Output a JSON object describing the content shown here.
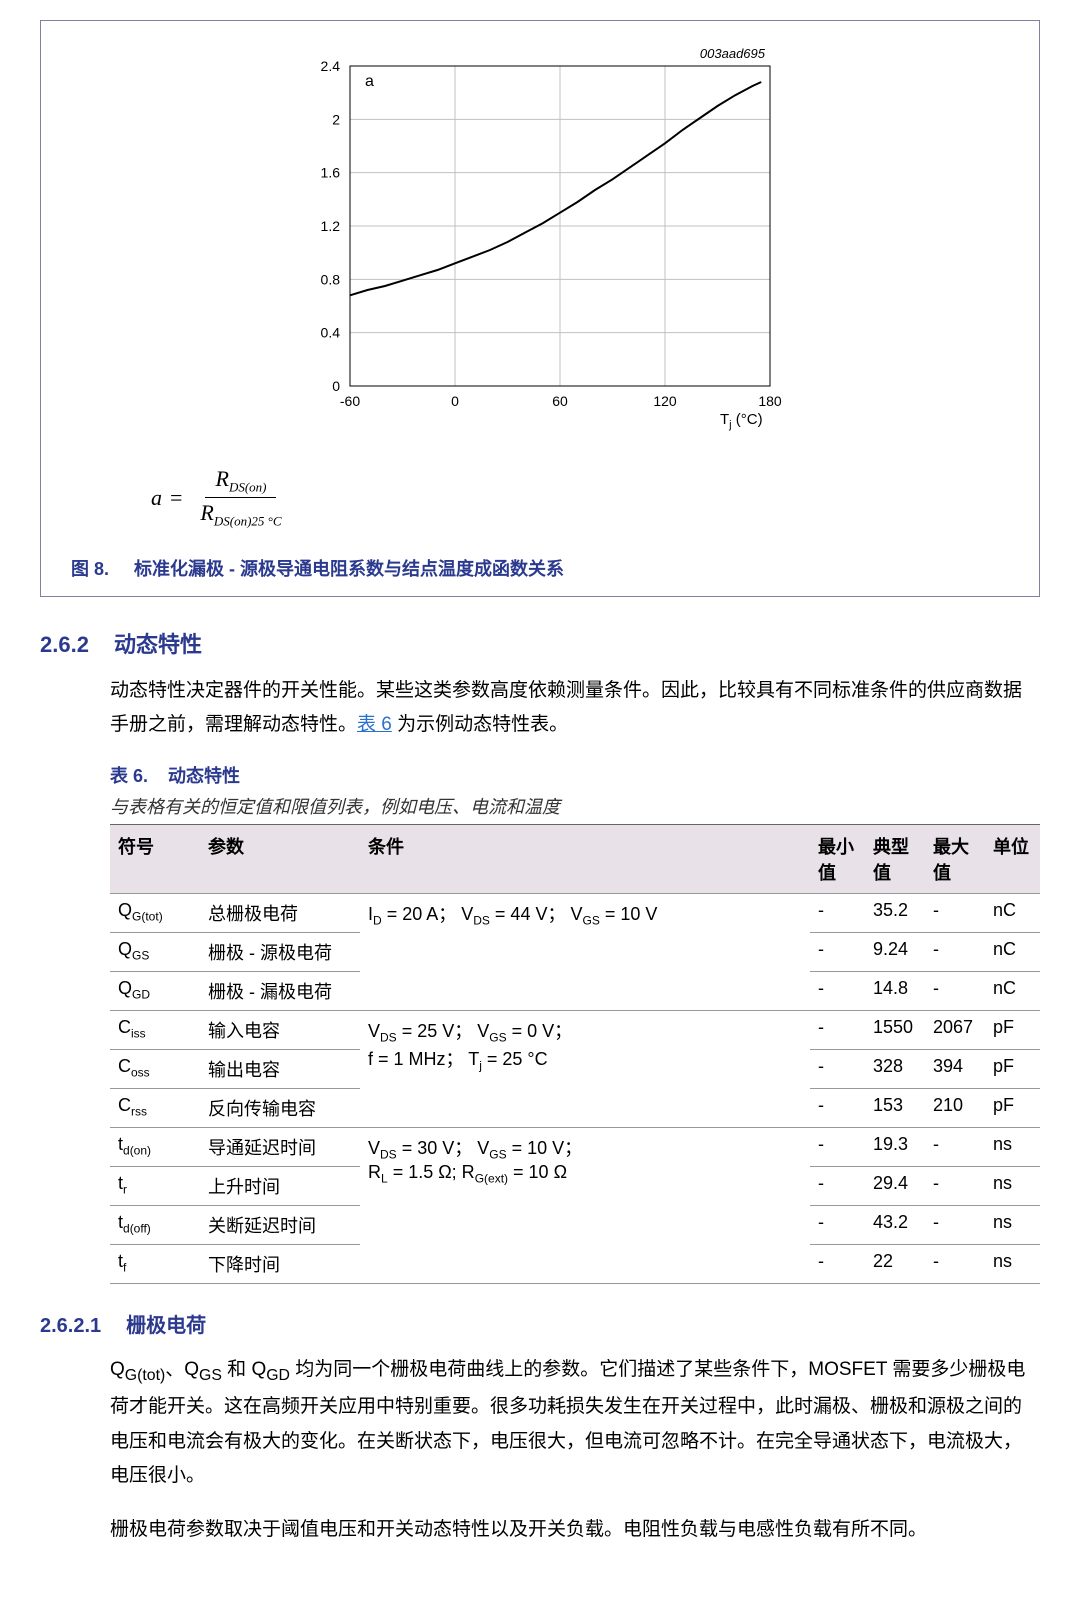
{
  "figure": {
    "label_num": "图 8.",
    "caption": "标准化漏极 - 源极导通电阻系数与结点温度成函数关系",
    "corner_id": "003aad695",
    "formula_lhs": "a",
    "formula_eq": "=",
    "formula_num_sym": "R",
    "formula_num_sub": "DS(on)",
    "formula_den_sym": "R",
    "formula_den_sub": "DS(on)25 °C",
    "chart": {
      "type": "line",
      "y_label": "a",
      "x_label": "T",
      "x_label_sub": "j",
      "x_unit": "(°C)",
      "xlim": [
        -60,
        180
      ],
      "ylim": [
        0,
        2.4
      ],
      "xticks": [
        -60,
        0,
        60,
        120,
        180
      ],
      "yticks": [
        0,
        0.4,
        0.8,
        1.2,
        1.6,
        2,
        2.4
      ],
      "grid_color": "#c0c0c0",
      "line_color": "#000000",
      "line_width": 2,
      "tick_fontsize": 14,
      "data": [
        [
          -60,
          0.68
        ],
        [
          -50,
          0.72
        ],
        [
          -40,
          0.75
        ],
        [
          -30,
          0.79
        ],
        [
          -20,
          0.83
        ],
        [
          -10,
          0.87
        ],
        [
          0,
          0.92
        ],
        [
          10,
          0.97
        ],
        [
          20,
          1.02
        ],
        [
          25,
          1.05
        ],
        [
          30,
          1.08
        ],
        [
          40,
          1.15
        ],
        [
          50,
          1.22
        ],
        [
          60,
          1.3
        ],
        [
          70,
          1.38
        ],
        [
          80,
          1.47
        ],
        [
          90,
          1.55
        ],
        [
          100,
          1.64
        ],
        [
          110,
          1.73
        ],
        [
          120,
          1.82
        ],
        [
          130,
          1.92
        ],
        [
          140,
          2.01
        ],
        [
          150,
          2.1
        ],
        [
          160,
          2.18
        ],
        [
          170,
          2.25
        ],
        [
          175,
          2.28
        ]
      ]
    }
  },
  "section262": {
    "num": "2.6.2",
    "title": "动态特性",
    "para1a": "动态特性决定器件的开关性能。某些这类参数高度依赖测量条件。因此，比较具有不同标准条件的供应商数据手册之前，需理解动态特性。",
    "link": "表 6",
    "para1b": " 为示例动态特性表。"
  },
  "table6": {
    "label_num": "表 6.",
    "title": "动态特性",
    "note": "与表格有关的恒定值和限值列表，例如电压、电流和温度",
    "headers": {
      "symbol": "符号",
      "param": "参数",
      "cond": "条件",
      "min": "最小值",
      "typ": "典型值",
      "max": "最大值",
      "unit": "单位"
    },
    "cond_group1": "I<sub>D</sub> = 20 A； V<sub>DS</sub> = 44 V； V<sub>GS</sub> = 10 V",
    "cond_group2": "V<sub>DS</sub> = 25 V； V<sub>GS</sub> = 0 V；<br>f = 1 MHz； T<sub>j</sub> = 25 °C",
    "cond_group3": "V<sub>DS</sub> = 30 V； V<sub>GS</sub> = 10 V；<br>R<sub>L</sub> = 1.5 Ω; R<sub>G(ext)</sub> = 10 Ω",
    "rows": [
      {
        "sym": "Q<sub>G(tot)</sub>",
        "param": "总栅极电荷",
        "min": "-",
        "typ": "35.2",
        "max": "-",
        "unit": "nC"
      },
      {
        "sym": "Q<sub>GS</sub>",
        "param": "栅极 - 源极电荷",
        "min": "-",
        "typ": "9.24",
        "max": "-",
        "unit": "nC"
      },
      {
        "sym": "Q<sub>GD</sub>",
        "param": "栅极 - 漏极电荷",
        "min": "-",
        "typ": "14.8",
        "max": "-",
        "unit": "nC"
      },
      {
        "sym": "C<sub>iss</sub>",
        "param": "输入电容",
        "min": "-",
        "typ": "1550",
        "max": "2067",
        "unit": "pF"
      },
      {
        "sym": "C<sub>oss</sub>",
        "param": "输出电容",
        "min": "-",
        "typ": "328",
        "max": "394",
        "unit": "pF"
      },
      {
        "sym": "C<sub>rss</sub>",
        "param": "反向传输电容",
        "min": "-",
        "typ": "153",
        "max": "210",
        "unit": "pF"
      },
      {
        "sym": "t<sub>d(on)</sub>",
        "param": "导通延迟时间",
        "min": "-",
        "typ": "19.3",
        "max": "-",
        "unit": "ns"
      },
      {
        "sym": "t<sub>r</sub>",
        "param": "上升时间",
        "min": "-",
        "typ": "29.4",
        "max": "-",
        "unit": "ns"
      },
      {
        "sym": "t<sub>d(off)</sub>",
        "param": "关断延迟时间",
        "min": "-",
        "typ": "43.2",
        "max": "-",
        "unit": "ns"
      },
      {
        "sym": "t<sub>f</sub>",
        "param": "下降时间",
        "min": "-",
        "typ": "22",
        "max": "-",
        "unit": "ns"
      }
    ]
  },
  "section2621": {
    "num": "2.6.2.1",
    "title": "栅极电荷",
    "para1": "Q<sub>G(tot)</sub>、Q<sub>GS</sub> 和 Q<sub>GD</sub> 均为同一个栅极电荷曲线上的参数。它们描述了某些条件下，MOSFET 需要多少栅极电荷才能开关。这在高频开关应用中特别重要。很多功耗损失发生在开关过程中，此时漏极、栅极和源极之间的电压和电流会有极大的变化。在关断状态下，电压很大，但电流可忽略不计。在完全导通状态下，电流极大，电压很小。",
    "para2": "栅极电荷参数取决于阈值电压和开关动态特性以及开关负载。电阻性负载与电感性负载有所不同。"
  }
}
